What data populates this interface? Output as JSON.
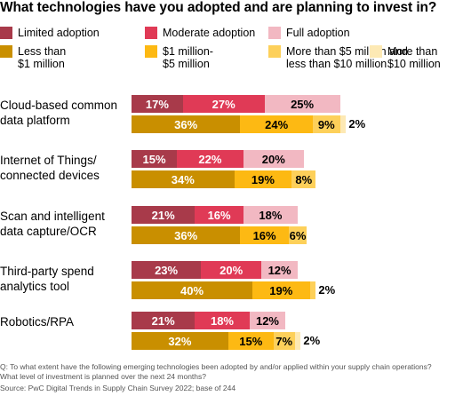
{
  "title": "What technologies have you adopted and are planning to invest in?",
  "legend": {
    "adoption": [
      {
        "name": "Limited adoption",
        "color": "#a83a4a"
      },
      {
        "name": "Moderate adoption",
        "color": "#e03a56"
      },
      {
        "name": "Full adoption",
        "color": "#f2b8c2"
      }
    ],
    "investment": [
      {
        "name": "Less than\n$1 million",
        "color": "#c98f00"
      },
      {
        "name": "$1 million-\n$5 million",
        "color": "#fdb913"
      },
      {
        "name": "More than $5 million and\nless than $10 million",
        "color": "#fdd05a"
      },
      {
        "name": "More than\n$10 million",
        "color": "#fde9b4"
      }
    ]
  },
  "chart_data": {
    "type": "bar",
    "orientation": "horizontal-stacked",
    "categories": [
      "Cloud-based common\ndata platform",
      "Internet of Things/\nconnected devices",
      "Scan and intelligent\ndata capture/OCR",
      "Third-party spend\nanalytics tool",
      "Robotics/RPA"
    ],
    "adoption_series": [
      {
        "name": "Limited adoption",
        "values": [
          17,
          15,
          21,
          23,
          21
        ]
      },
      {
        "name": "Moderate adoption",
        "values": [
          27,
          22,
          16,
          20,
          18
        ]
      },
      {
        "name": "Full adoption",
        "values": [
          25,
          20,
          18,
          12,
          12
        ]
      }
    ],
    "investment_series": [
      {
        "name": "Less than $1 million",
        "values": [
          36,
          34,
          36,
          40,
          32
        ]
      },
      {
        "name": "$1 million-$5 million",
        "values": [
          24,
          19,
          16,
          19,
          15
        ]
      },
      {
        "name": "More than $5 million and less than $10 million",
        "values": [
          9,
          8,
          6,
          2,
          7
        ]
      },
      {
        "name": "More than $10 million",
        "values": [
          2,
          0,
          0,
          0,
          2
        ]
      }
    ],
    "value_suffix": "%"
  },
  "footnote": {
    "question": "Q: To what extent have the following emerging technologies been adopted by and/or applied within your supply chain operations? What level of investment is planned over the next 24 months?",
    "source": "Source: PwC Digital Trends in Supply Chain Survey 2022; base of 244"
  }
}
